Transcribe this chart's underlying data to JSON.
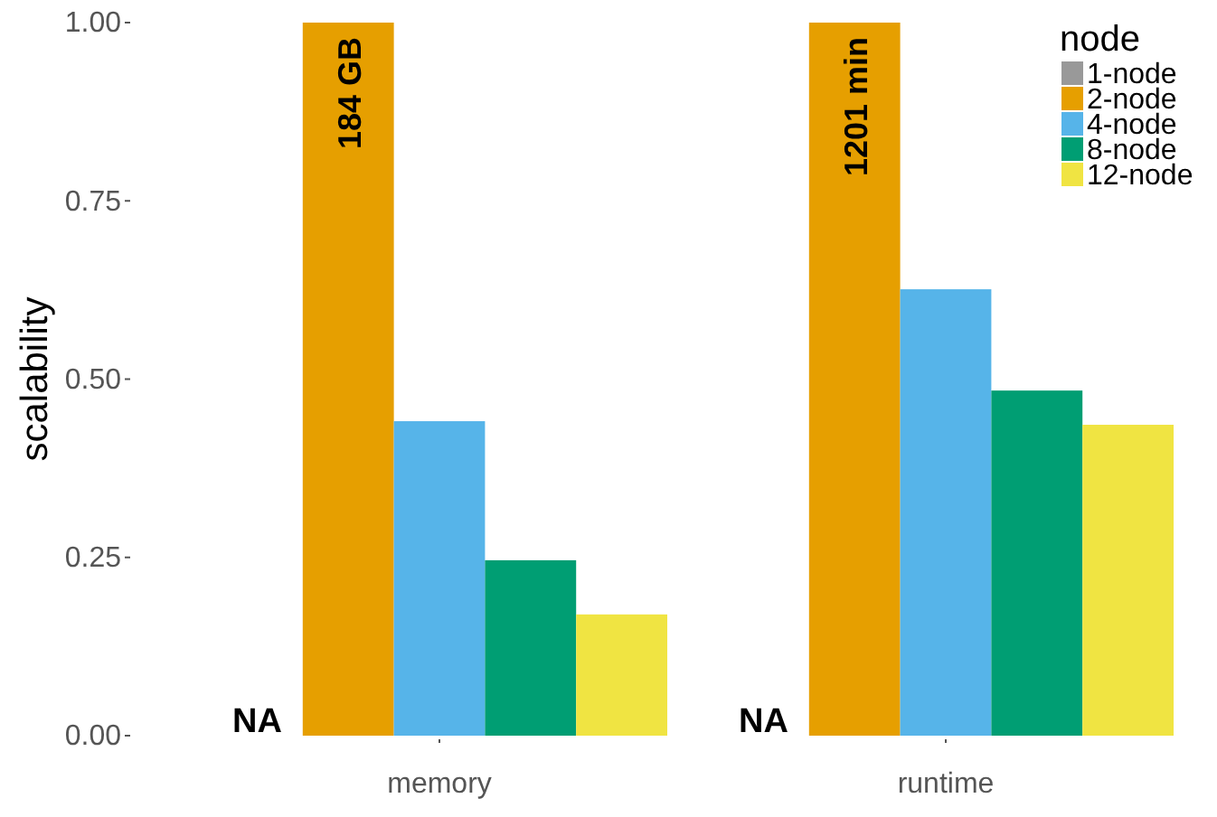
{
  "chart_data": {
    "type": "bar",
    "ylabel": "scalability",
    "legend_title": "node",
    "legend": "top right",
    "grid": false,
    "categories": [
      "memory",
      "runtime"
    ],
    "annotations": [
      "184 GB",
      "1201 min"
    ],
    "ylim": [
      0,
      1
    ],
    "yticks": [
      {
        "value": 0,
        "label": "0.00"
      },
      {
        "value": 0.25,
        "label": "0.25"
      },
      {
        "value": 0.5,
        "label": "0.50"
      },
      {
        "value": 0.75,
        "label": "0.75"
      },
      {
        "value": 1,
        "label": "1.00"
      }
    ],
    "series": [
      {
        "name": "1-node",
        "color": "#999999",
        "values": [
          null,
          null
        ],
        "value_labels": [
          "NA",
          "NA"
        ]
      },
      {
        "name": "2-node",
        "color": "#e69f00",
        "values": [
          1,
          1
        ]
      },
      {
        "name": "4-node",
        "color": "#56b4e9",
        "values": [
          0.441,
          0.626
        ]
      },
      {
        "name": "8-node",
        "color": "#009e73",
        "values": [
          0.246,
          0.484
        ]
      },
      {
        "name": "12-node",
        "color": "#f0e442",
        "values": [
          0.17,
          0.436
        ]
      }
    ]
  }
}
